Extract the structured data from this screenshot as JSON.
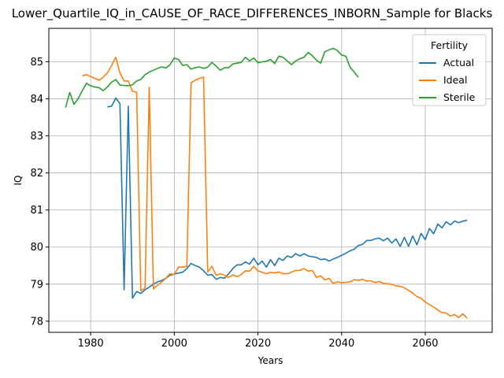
{
  "chart_data": {
    "type": "line",
    "title": "Lower_Quartile_IQ_in_CAUSE_OF_RACE_DIFFERENCES_INBORN_Sample for Blacks",
    "xlabel": "Years",
    "ylabel": "IQ",
    "xlim": [
      1970,
      2076
    ],
    "ylim": [
      77.7,
      85.9
    ],
    "x_ticks": [
      1980,
      2000,
      2020,
      2040,
      2060
    ],
    "y_ticks": [
      78,
      79,
      80,
      81,
      82,
      83,
      84,
      85
    ],
    "grid": true,
    "legend": {
      "title": "Fertility",
      "placement": "top-right"
    },
    "series": [
      {
        "name": "Actual",
        "color": "#1f77b4",
        "points": [
          [
            1984,
            83.78
          ],
          [
            1985,
            83.8
          ],
          [
            1986,
            84.02
          ],
          [
            1987,
            83.87
          ],
          [
            1988,
            78.85
          ],
          [
            1989,
            83.8
          ],
          [
            1990,
            78.62
          ],
          [
            1991,
            78.8
          ],
          [
            1992,
            78.75
          ],
          [
            1993,
            78.85
          ],
          [
            1994,
            78.92
          ],
          [
            1995,
            79.0
          ],
          [
            1996,
            79.06
          ],
          [
            1997,
            79.1
          ],
          [
            1998,
            79.16
          ],
          [
            1999,
            79.24
          ],
          [
            2000,
            79.27
          ],
          [
            2001,
            79.3
          ],
          [
            2002,
            79.32
          ],
          [
            2003,
            79.42
          ],
          [
            2004,
            79.56
          ],
          [
            2005,
            79.5
          ],
          [
            2006,
            79.46
          ],
          [
            2007,
            79.36
          ],
          [
            2008,
            79.24
          ],
          [
            2009,
            79.26
          ],
          [
            2010,
            79.13
          ],
          [
            2011,
            79.18
          ],
          [
            2012,
            79.16
          ],
          [
            2013,
            79.28
          ],
          [
            2014,
            79.42
          ],
          [
            2015,
            79.52
          ],
          [
            2016,
            79.52
          ],
          [
            2017,
            79.6
          ],
          [
            2018,
            79.54
          ],
          [
            2019,
            79.7
          ],
          [
            2020,
            79.52
          ],
          [
            2021,
            79.62
          ],
          [
            2022,
            79.46
          ],
          [
            2023,
            79.66
          ],
          [
            2024,
            79.5
          ],
          [
            2025,
            79.7
          ],
          [
            2026,
            79.64
          ],
          [
            2027,
            79.76
          ],
          [
            2028,
            79.72
          ],
          [
            2029,
            79.82
          ],
          [
            2030,
            79.76
          ],
          [
            2031,
            79.82
          ],
          [
            2032,
            79.76
          ],
          [
            2033,
            79.74
          ],
          [
            2034,
            79.72
          ],
          [
            2035,
            79.66
          ],
          [
            2036,
            79.68
          ],
          [
            2037,
            79.62
          ],
          [
            2038,
            79.68
          ],
          [
            2039,
            79.72
          ],
          [
            2040,
            79.78
          ],
          [
            2041,
            79.83
          ],
          [
            2042,
            79.9
          ],
          [
            2043,
            79.94
          ],
          [
            2044,
            80.04
          ],
          [
            2045,
            80.07
          ],
          [
            2046,
            80.18
          ],
          [
            2047,
            80.18
          ],
          [
            2048,
            80.22
          ],
          [
            2049,
            80.24
          ],
          [
            2050,
            80.17
          ],
          [
            2051,
            80.24
          ],
          [
            2052,
            80.11
          ],
          [
            2053,
            80.22
          ],
          [
            2054,
            80.02
          ],
          [
            2055,
            80.26
          ],
          [
            2056,
            80.02
          ],
          [
            2057,
            80.3
          ],
          [
            2058,
            80.06
          ],
          [
            2059,
            80.37
          ],
          [
            2060,
            80.2
          ],
          [
            2061,
            80.5
          ],
          [
            2062,
            80.36
          ],
          [
            2063,
            80.62
          ],
          [
            2064,
            80.52
          ],
          [
            2065,
            80.68
          ],
          [
            2066,
            80.6
          ],
          [
            2067,
            80.7
          ],
          [
            2068,
            80.66
          ],
          [
            2069,
            80.7
          ],
          [
            2070,
            80.72
          ]
        ]
      },
      {
        "name": "Ideal",
        "color": "#ff7f0e",
        "points": [
          [
            1978,
            84.62
          ],
          [
            1979,
            84.65
          ],
          [
            1980,
            84.6
          ],
          [
            1981,
            84.55
          ],
          [
            1982,
            84.5
          ],
          [
            1983,
            84.58
          ],
          [
            1984,
            84.7
          ],
          [
            1985,
            84.9
          ],
          [
            1986,
            85.12
          ],
          [
            1987,
            84.7
          ],
          [
            1988,
            84.48
          ],
          [
            1989,
            84.48
          ],
          [
            1990,
            84.2
          ],
          [
            1991,
            84.18
          ],
          [
            1992,
            78.82
          ],
          [
            1993,
            78.9
          ],
          [
            1994,
            84.31
          ],
          [
            1995,
            78.87
          ],
          [
            1996,
            78.97
          ],
          [
            1997,
            79.06
          ],
          [
            1998,
            79.16
          ],
          [
            1999,
            79.28
          ],
          [
            2000,
            79.26
          ],
          [
            2001,
            79.46
          ],
          [
            2002,
            79.46
          ],
          [
            2003,
            79.48
          ],
          [
            2004,
            84.43
          ],
          [
            2005,
            84.5
          ],
          [
            2006,
            84.55
          ],
          [
            2007,
            84.58
          ],
          [
            2008,
            79.33
          ],
          [
            2009,
            79.48
          ],
          [
            2010,
            79.24
          ],
          [
            2011,
            79.28
          ],
          [
            2012,
            79.24
          ],
          [
            2013,
            79.18
          ],
          [
            2014,
            79.25
          ],
          [
            2015,
            79.2
          ],
          [
            2016,
            79.26
          ],
          [
            2017,
            79.36
          ],
          [
            2018,
            79.35
          ],
          [
            2019,
            79.48
          ],
          [
            2020,
            79.36
          ],
          [
            2021,
            79.32
          ],
          [
            2022,
            79.28
          ],
          [
            2023,
            79.32
          ],
          [
            2024,
            79.3
          ],
          [
            2025,
            79.33
          ],
          [
            2026,
            79.28
          ],
          [
            2027,
            79.28
          ],
          [
            2028,
            79.32
          ],
          [
            2029,
            79.37
          ],
          [
            2030,
            79.37
          ],
          [
            2031,
            79.42
          ],
          [
            2032,
            79.35
          ],
          [
            2033,
            79.37
          ],
          [
            2034,
            79.18
          ],
          [
            2035,
            79.22
          ],
          [
            2036,
            79.12
          ],
          [
            2037,
            79.15
          ],
          [
            2038,
            79.02
          ],
          [
            2039,
            79.06
          ],
          [
            2040,
            79.04
          ],
          [
            2041,
            79.05
          ],
          [
            2042,
            79.06
          ],
          [
            2043,
            79.12
          ],
          [
            2044,
            79.1
          ],
          [
            2045,
            79.13
          ],
          [
            2046,
            79.08
          ],
          [
            2047,
            79.09
          ],
          [
            2048,
            79.04
          ],
          [
            2049,
            79.07
          ],
          [
            2050,
            79.02
          ],
          [
            2051,
            79.01
          ],
          [
            2052,
            79.0
          ],
          [
            2053,
            78.95
          ],
          [
            2054,
            78.94
          ],
          [
            2055,
            78.9
          ],
          [
            2056,
            78.83
          ],
          [
            2057,
            78.76
          ],
          [
            2058,
            78.66
          ],
          [
            2059,
            78.62
          ],
          [
            2060,
            78.52
          ],
          [
            2061,
            78.45
          ],
          [
            2062,
            78.38
          ],
          [
            2063,
            78.3
          ],
          [
            2064,
            78.23
          ],
          [
            2065,
            78.22
          ],
          [
            2066,
            78.14
          ],
          [
            2067,
            78.18
          ],
          [
            2068,
            78.1
          ],
          [
            2069,
            78.2
          ],
          [
            2070,
            78.08
          ]
        ]
      },
      {
        "name": "Sterile",
        "color": "#2ca02c",
        "points": [
          [
            1974,
            83.76
          ],
          [
            1975,
            84.17
          ],
          [
            1976,
            83.85
          ],
          [
            1977,
            84.0
          ],
          [
            1978,
            84.22
          ],
          [
            1979,
            84.42
          ],
          [
            1980,
            84.35
          ],
          [
            1981,
            84.32
          ],
          [
            1982,
            84.3
          ],
          [
            1983,
            84.22
          ],
          [
            1984,
            84.32
          ],
          [
            1985,
            84.45
          ],
          [
            1986,
            84.52
          ],
          [
            1987,
            84.37
          ],
          [
            1988,
            84.36
          ],
          [
            1989,
            84.35
          ],
          [
            1990,
            84.38
          ],
          [
            1991,
            84.48
          ],
          [
            1992,
            84.52
          ],
          [
            1993,
            84.65
          ],
          [
            1994,
            84.72
          ],
          [
            1995,
            84.77
          ],
          [
            1996,
            84.82
          ],
          [
            1997,
            84.86
          ],
          [
            1998,
            84.83
          ],
          [
            1999,
            84.92
          ],
          [
            2000,
            85.1
          ],
          [
            2001,
            85.06
          ],
          [
            2002,
            84.9
          ],
          [
            2003,
            84.92
          ],
          [
            2004,
            84.8
          ],
          [
            2005,
            84.84
          ],
          [
            2006,
            84.86
          ],
          [
            2007,
            84.82
          ],
          [
            2008,
            84.85
          ],
          [
            2009,
            84.98
          ],
          [
            2010,
            84.88
          ],
          [
            2011,
            84.77
          ],
          [
            2012,
            84.84
          ],
          [
            2013,
            84.84
          ],
          [
            2014,
            84.94
          ],
          [
            2015,
            84.96
          ],
          [
            2016,
            84.98
          ],
          [
            2017,
            85.12
          ],
          [
            2018,
            85.02
          ],
          [
            2019,
            85.1
          ],
          [
            2020,
            84.97
          ],
          [
            2021,
            85.0
          ],
          [
            2022,
            85.01
          ],
          [
            2023,
            85.06
          ],
          [
            2024,
            84.95
          ],
          [
            2025,
            85.15
          ],
          [
            2026,
            85.12
          ],
          [
            2027,
            85.02
          ],
          [
            2028,
            84.92
          ],
          [
            2029,
            85.02
          ],
          [
            2030,
            85.08
          ],
          [
            2031,
            85.12
          ],
          [
            2032,
            85.25
          ],
          [
            2033,
            85.16
          ],
          [
            2034,
            85.04
          ],
          [
            2035,
            84.96
          ],
          [
            2036,
            85.27
          ],
          [
            2037,
            85.32
          ],
          [
            2038,
            85.36
          ],
          [
            2039,
            85.3
          ],
          [
            2040,
            85.18
          ],
          [
            2041,
            85.15
          ],
          [
            2042,
            84.86
          ],
          [
            2043,
            84.72
          ],
          [
            2044,
            84.58
          ]
        ]
      }
    ]
  }
}
